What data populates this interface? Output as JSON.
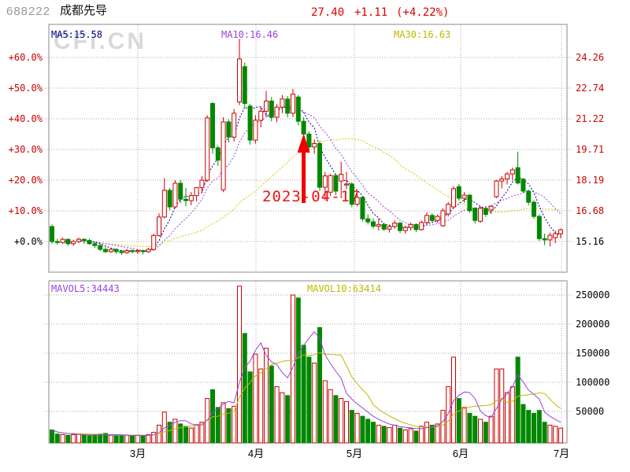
{
  "header": {
    "code": "688222",
    "name": "成都先导",
    "price": "27.40",
    "change": "+1.11",
    "change_pct": "(+4.22%)"
  },
  "watermark": "CFi.CN",
  "main_panel": {
    "ma5_label": "MA5:15.58",
    "ma10_label": "MA10:16.46",
    "ma30_label": "MA30:16.63",
    "left_axis": [
      "+60.0%",
      "+50.0%",
      "+40.0%",
      "+30.0%",
      "+20.0%",
      "+10.0%",
      "+0.0%"
    ],
    "right_axis": [
      "24.26",
      "22.74",
      "21.22",
      "19.71",
      "18.19",
      "16.68",
      "15.16"
    ]
  },
  "volume_panel": {
    "mavol5_label": "MAVOL5:34443",
    "mavol10_label": "MAVOL10:63414",
    "right_axis": [
      "250000",
      "200000",
      "150000",
      "100000",
      "50000"
    ]
  },
  "x_axis": {
    "months": [
      "3月",
      "4月",
      "5月",
      "6月",
      "7月"
    ]
  },
  "annotation": {
    "date": "2023-04-17"
  },
  "colors": {
    "up": "#cc0000",
    "down": "#008800",
    "ma5": "#000088",
    "ma10": "#9944dd",
    "ma30": "#cccc00",
    "mavol5": "#9944dd",
    "mavol10": "#bbbb00",
    "grid": "#aaaaaa",
    "border": "#888888",
    "arrow": "#ee0000",
    "quote": "#dd0000"
  },
  "chart_data": {
    "type": "candlestick+volume",
    "title": "688222 成都先导 daily K-line, Feb–Jul 2023",
    "baseline_price": 15.16,
    "price_axis_pct": [
      60,
      50,
      40,
      30,
      20,
      10,
      0
    ],
    "price_axis_values": [
      24.26,
      22.74,
      21.22,
      19.71,
      18.19,
      16.68,
      15.16
    ],
    "volume_axis": [
      250000,
      200000,
      150000,
      100000,
      50000
    ],
    "month_gridlines": [
      "3月",
      "4月",
      "5月",
      "6月",
      "7月"
    ],
    "annotation_candle_index": 47,
    "candles": [
      [
        15.9,
        16.0,
        15.05,
        15.16,
        22000
      ],
      [
        15.16,
        15.3,
        15.0,
        15.11,
        15000
      ],
      [
        15.11,
        15.35,
        15.05,
        15.27,
        14000
      ],
      [
        15.27,
        15.3,
        14.95,
        15.05,
        13000
      ],
      [
        15.05,
        15.25,
        14.95,
        15.16,
        14000
      ],
      [
        15.16,
        15.35,
        15.08,
        15.27,
        15000
      ],
      [
        15.27,
        15.32,
        15.05,
        15.21,
        13000
      ],
      [
        15.21,
        15.3,
        15.0,
        15.05,
        12000
      ],
      [
        15.05,
        15.15,
        14.85,
        14.96,
        13000
      ],
      [
        14.96,
        15.05,
        14.7,
        14.77,
        15000
      ],
      [
        14.77,
        14.9,
        14.58,
        14.66,
        16000
      ],
      [
        14.66,
        14.85,
        14.6,
        14.77,
        13000
      ],
      [
        14.77,
        14.82,
        14.55,
        14.66,
        12000
      ],
      [
        14.66,
        14.75,
        14.5,
        14.61,
        12000
      ],
      [
        14.61,
        14.8,
        14.55,
        14.71,
        13000
      ],
      [
        14.71,
        14.78,
        14.58,
        14.66,
        12000
      ],
      [
        14.66,
        14.78,
        14.55,
        14.71,
        13000
      ],
      [
        14.71,
        14.76,
        14.52,
        14.66,
        12000
      ],
      [
        14.66,
        14.85,
        14.6,
        14.77,
        14000
      ],
      [
        14.77,
        15.55,
        14.7,
        15.46,
        18000
      ],
      [
        15.46,
        16.55,
        15.4,
        16.37,
        30000
      ],
      [
        16.37,
        18.3,
        16.3,
        17.69,
        52000
      ],
      [
        17.69,
        17.8,
        16.7,
        16.87,
        35000
      ],
      [
        16.87,
        18.2,
        16.8,
        18.04,
        40000
      ],
      [
        18.04,
        18.2,
        17.05,
        17.25,
        32000
      ],
      [
        17.25,
        17.8,
        16.9,
        17.18,
        28000
      ],
      [
        17.18,
        17.6,
        16.95,
        17.43,
        25000
      ],
      [
        17.43,
        17.85,
        17.15,
        17.82,
        30000
      ],
      [
        17.82,
        18.4,
        17.55,
        18.19,
        35000
      ],
      [
        18.19,
        21.4,
        18.1,
        21.27,
        75000
      ],
      [
        21.98,
        22.05,
        19.5,
        19.79,
        90000
      ],
      [
        19.79,
        19.9,
        18.9,
        19.18,
        60000
      ],
      [
        17.72,
        21.3,
        17.6,
        21.07,
        68000
      ],
      [
        21.07,
        21.2,
        20.05,
        20.32,
        58000
      ],
      [
        20.32,
        21.7,
        20.1,
        21.5,
        62000
      ],
      [
        22.06,
        25.17,
        21.9,
        24.18,
        265000
      ],
      [
        23.8,
        24.0,
        21.8,
        21.98,
        185000
      ],
      [
        21.85,
        21.95,
        19.95,
        20.17,
        120000
      ],
      [
        20.17,
        21.4,
        20.0,
        21.15,
        150000
      ],
      [
        21.15,
        21.8,
        20.8,
        21.6,
        125000
      ],
      [
        21.6,
        22.6,
        21.35,
        22.1,
        160000
      ],
      [
        22.1,
        22.3,
        21.1,
        21.3,
        130000
      ],
      [
        21.3,
        21.95,
        21.05,
        21.8,
        95000
      ],
      [
        21.8,
        22.4,
        21.5,
        22.2,
        85000
      ],
      [
        22.2,
        22.35,
        21.3,
        21.5,
        80000
      ],
      [
        21.5,
        22.7,
        21.3,
        22.44,
        250000
      ],
      [
        22.3,
        22.4,
        20.9,
        21.1,
        245000
      ],
      [
        21.1,
        21.3,
        20.3,
        20.47,
        165000
      ],
      [
        20.47,
        20.6,
        19.55,
        19.83,
        145000
      ],
      [
        19.83,
        20.2,
        19.5,
        20.0,
        135000
      ],
      [
        20.0,
        20.1,
        17.65,
        17.84,
        195000
      ],
      [
        17.84,
        18.6,
        17.2,
        18.4,
        105000
      ],
      [
        17.6,
        18.5,
        17.4,
        18.42,
        90000
      ],
      [
        18.42,
        18.5,
        17.45,
        17.65,
        80000
      ],
      [
        18.15,
        19.1,
        17.3,
        18.48,
        75000
      ],
      [
        17.95,
        18.6,
        17.75,
        18.0,
        70000
      ],
      [
        18.0,
        18.1,
        16.85,
        17.0,
        55000
      ],
      [
        17.0,
        17.5,
        16.9,
        17.34,
        50000
      ],
      [
        17.34,
        17.4,
        16.15,
        16.28,
        45000
      ],
      [
        16.28,
        16.5,
        16.0,
        16.13,
        40000
      ],
      [
        16.13,
        16.3,
        15.8,
        15.92,
        35000
      ],
      [
        15.92,
        16.3,
        15.7,
        16.0,
        30000
      ],
      [
        16.0,
        16.1,
        15.68,
        15.77,
        28000
      ],
      [
        15.77,
        16.0,
        15.6,
        15.9,
        26000
      ],
      [
        15.9,
        16.2,
        15.78,
        16.07,
        30000
      ],
      [
        16.07,
        16.12,
        15.58,
        15.7,
        25000
      ],
      [
        15.7,
        15.95,
        15.55,
        15.85,
        22000
      ],
      [
        15.85,
        16.1,
        15.7,
        16.0,
        24000
      ],
      [
        16.0,
        16.05,
        15.62,
        15.75,
        20000
      ],
      [
        15.75,
        16.2,
        15.7,
        16.1,
        28000
      ],
      [
        16.1,
        16.6,
        16.0,
        16.45,
        35000
      ],
      [
        16.45,
        16.55,
        16.08,
        16.2,
        30000
      ],
      [
        16.2,
        16.5,
        16.08,
        16.4,
        32000
      ],
      [
        15.94,
        16.8,
        15.88,
        16.68,
        55000
      ],
      [
        16.52,
        17.1,
        16.4,
        17.0,
        95000
      ],
      [
        16.87,
        17.9,
        16.8,
        17.77,
        145000
      ],
      [
        17.87,
        18.0,
        17.18,
        17.3,
        75000
      ],
      [
        17.3,
        17.6,
        17.08,
        17.45,
        60000
      ],
      [
        17.45,
        17.5,
        16.58,
        16.68,
        50000
      ],
      [
        16.8,
        16.85,
        16.05,
        16.2,
        45000
      ],
      [
        16.16,
        16.9,
        16.08,
        16.8,
        40000
      ],
      [
        16.8,
        16.9,
        16.38,
        16.5,
        35000
      ],
      [
        16.72,
        16.95,
        16.52,
        16.9,
        45000
      ],
      [
        17.37,
        18.2,
        17.3,
        18.15,
        125000
      ],
      [
        18.15,
        18.4,
        17.78,
        18.25,
        125000
      ],
      [
        18.25,
        18.6,
        17.98,
        18.5,
        85000
      ],
      [
        18.5,
        18.81,
        18.18,
        18.7,
        95000
      ],
      [
        18.81,
        19.6,
        17.98,
        18.05,
        145000
      ],
      [
        18.24,
        18.3,
        17.55,
        17.65,
        65000
      ],
      [
        17.65,
        17.72,
        16.95,
        17.1,
        55000
      ],
      [
        17.1,
        17.2,
        16.28,
        16.4,
        50000
      ],
      [
        16.4,
        16.5,
        15.18,
        15.3,
        55000
      ],
      [
        15.3,
        15.55,
        14.98,
        15.24,
        35000
      ],
      [
        15.24,
        15.6,
        14.92,
        15.47,
        30000
      ],
      [
        15.35,
        15.7,
        15.08,
        15.55,
        28000
      ],
      [
        15.55,
        15.8,
        15.32,
        15.74,
        25000
      ]
    ]
  }
}
